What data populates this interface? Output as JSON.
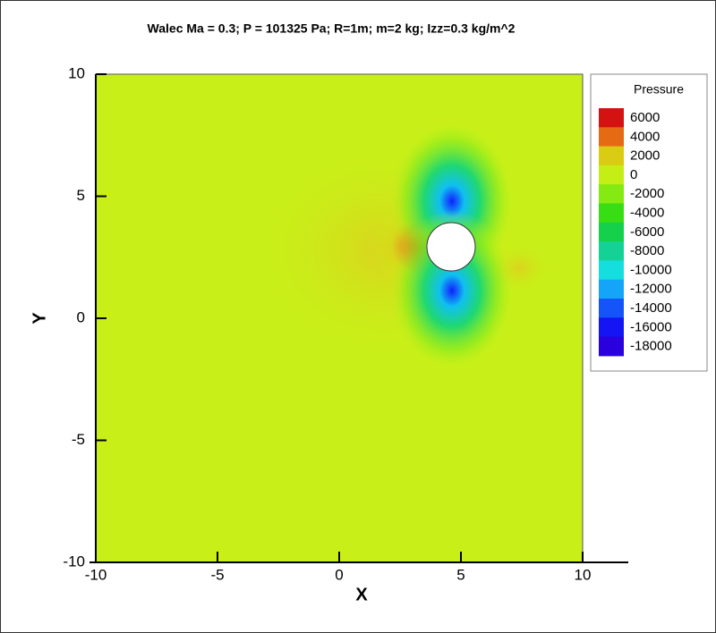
{
  "chart_data": {
    "type": "contour",
    "title": "Walec Ma = 0.3; P = 101325 Pa; R=1m; m=2 kg; Izz=0.3 kg/m^2",
    "x_label": "X",
    "y_label": "Y",
    "xlim": [
      -10,
      10
    ],
    "ylim": [
      -10,
      10
    ],
    "xticks": [
      -10,
      -5,
      0,
      5,
      10
    ],
    "yticks": [
      -10,
      -5,
      0,
      5,
      10
    ],
    "colorbar": {
      "title": "Pressure",
      "levels": [
        6000,
        4000,
        2000,
        0,
        -2000,
        -4000,
        -6000,
        -8000,
        -10000,
        -12000,
        -14000,
        -16000,
        -18000
      ],
      "colors": [
        "#d41212",
        "#e56a14",
        "#d9cc12",
        "#c4ee14",
        "#84ea12",
        "#38de14",
        "#14d04a",
        "#14d296",
        "#14dede",
        "#14a4f8",
        "#1454f8",
        "#1414f4",
        "#2a00dc"
      ]
    }
  }
}
